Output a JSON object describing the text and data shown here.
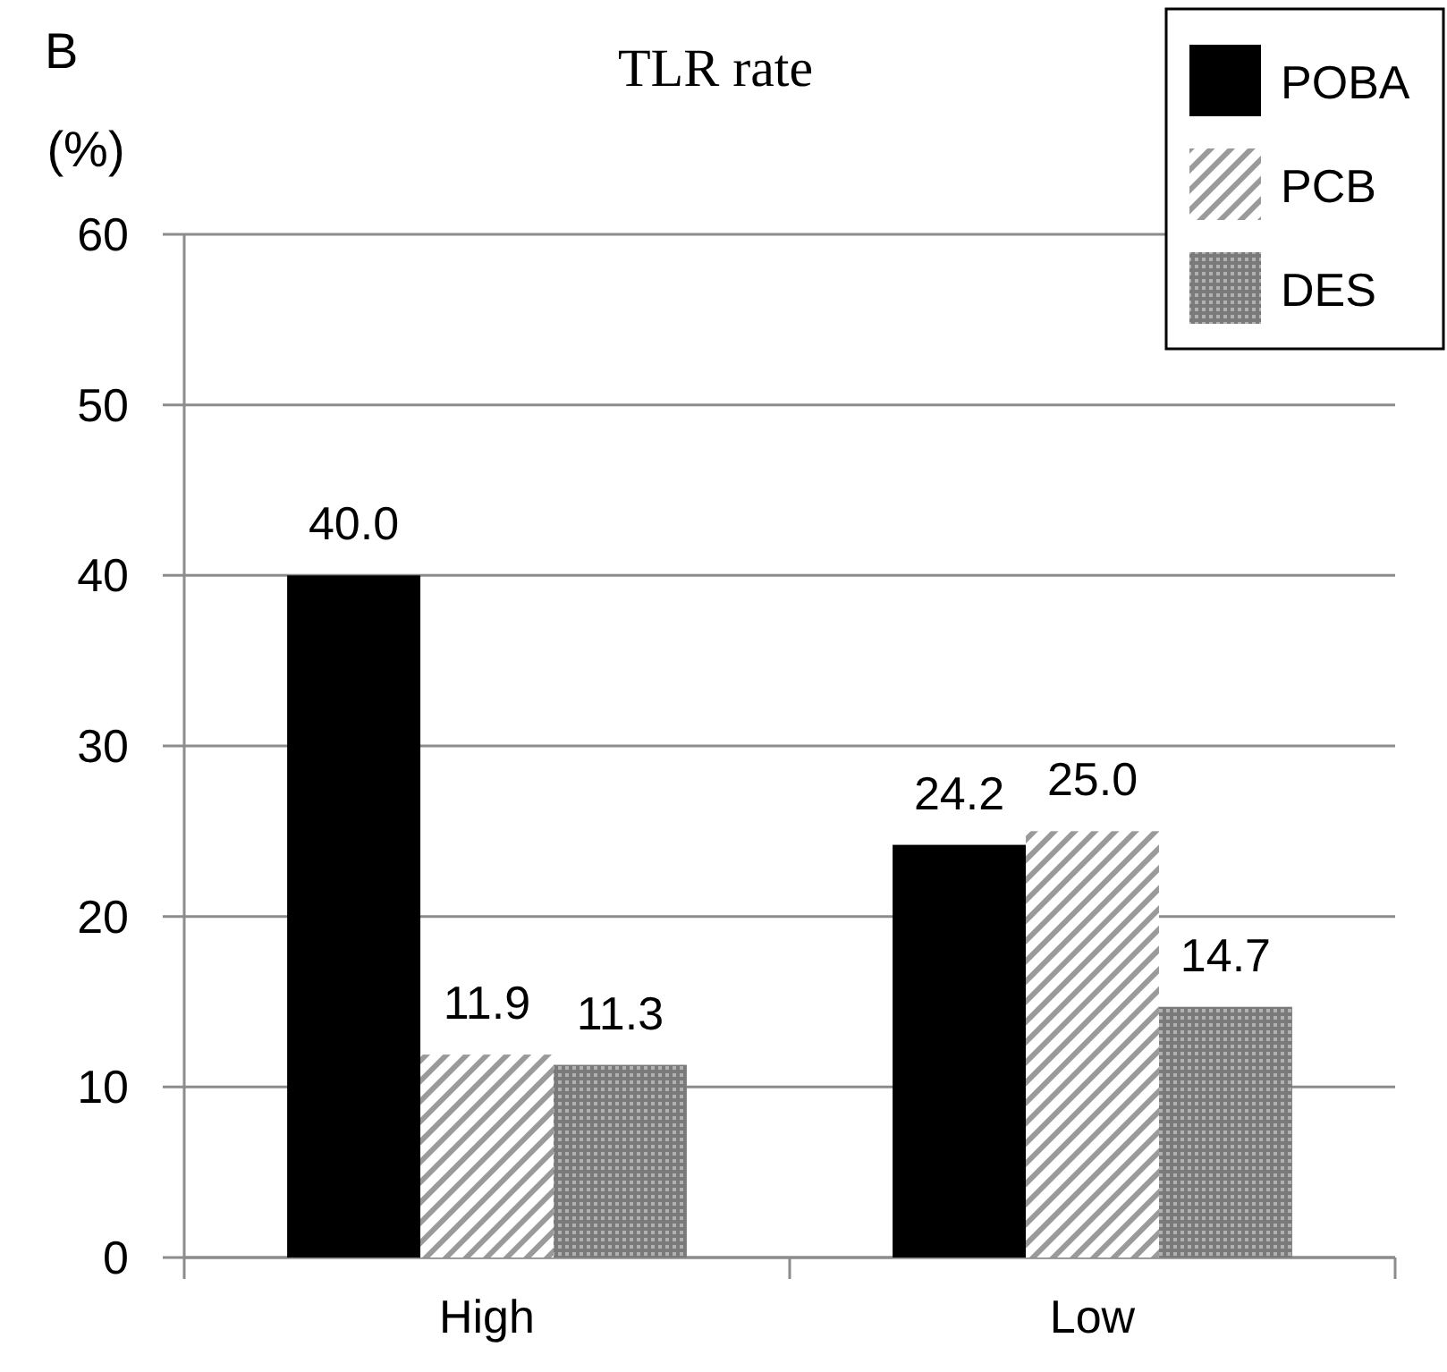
{
  "chart_data": {
    "type": "bar",
    "title": "TLR rate",
    "ylabel": "(%)",
    "annotations": [
      "B"
    ],
    "categories": [
      "High",
      "Low"
    ],
    "series": [
      {
        "name": "POBA",
        "color": "#000000",
        "values": [
          40.0,
          24.2
        ],
        "value_labels": [
          "40.0",
          "24.2"
        ]
      },
      {
        "name": "PCB",
        "color": "#9a9a9a",
        "values": [
          11.9,
          25.0
        ],
        "value_labels": [
          "11.9",
          "25.0"
        ]
      },
      {
        "name": "DES",
        "color": "#7a7a7a",
        "values": [
          11.3,
          14.7
        ],
        "value_labels": [
          "11.3",
          "14.7"
        ]
      }
    ],
    "ylim": [
      0,
      60
    ],
    "yticks": [
      0,
      10,
      20,
      30,
      40,
      50,
      60
    ],
    "grid": "y",
    "legend": "top right"
  }
}
